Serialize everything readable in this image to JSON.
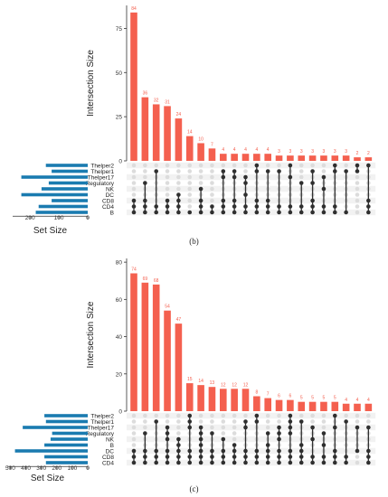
{
  "panels": [
    {
      "caption": "(b)",
      "chart_data": {
        "type": "bar",
        "title": "",
        "ylabel": "Intersection Size",
        "ylim": [
          0,
          88
        ],
        "yticks": [
          0,
          25,
          50,
          75
        ],
        "bar_color": "#f4604f",
        "values": [
          84,
          36,
          32,
          31,
          24,
          14,
          10,
          7,
          4,
          4,
          4,
          4,
          4,
          3,
          3,
          3,
          3,
          3,
          3,
          3,
          2,
          2
        ],
        "sets": [
          "Thelper2",
          "Thelper1",
          "Thelper17",
          "Regulatory",
          "NK",
          "DC",
          "CD8",
          "CD4",
          "B"
        ],
        "set_sizes": [
          145,
          125,
          230,
          135,
          160,
          230,
          125,
          170,
          180
        ],
        "set_size_xlabel": "Set Size",
        "set_size_ticks": [
          200,
          100,
          0
        ],
        "set_size_max": 260,
        "set_color": "#1a7bb0",
        "memberships": [
          [
            6,
            7,
            8
          ],
          [
            3,
            6,
            7,
            8
          ],
          [
            1,
            7,
            8
          ],
          [
            6,
            7,
            8
          ],
          [
            5,
            6,
            7,
            8
          ],
          [
            8
          ],
          [
            4,
            6,
            7,
            8
          ],
          [
            7,
            8
          ],
          [
            1,
            2,
            6,
            7,
            8
          ],
          [
            1,
            2,
            6,
            7,
            8
          ],
          [
            2,
            3,
            5,
            7,
            8
          ],
          [
            0,
            1,
            6,
            7,
            8
          ],
          [
            1,
            6,
            7,
            8
          ],
          [
            1,
            7,
            8
          ],
          [
            0,
            2,
            7,
            8
          ],
          [
            3,
            7,
            8
          ],
          [
            1,
            3,
            6,
            7,
            8
          ],
          [
            2,
            4,
            7,
            8
          ],
          [
            0,
            1,
            7,
            8
          ],
          [
            1,
            8
          ],
          [
            0,
            1
          ],
          [
            0,
            6,
            7,
            8
          ]
        ]
      }
    },
    {
      "caption": "(c)",
      "chart_data": {
        "type": "bar",
        "title": "",
        "ylabel": "Intersection Size",
        "ylim": [
          0,
          82
        ],
        "yticks": [
          0,
          20,
          40,
          60,
          80
        ],
        "bar_color": "#f4604f",
        "values": [
          74,
          69,
          68,
          54,
          47,
          15,
          14,
          13,
          12,
          12,
          12,
          8,
          7,
          6,
          6,
          5,
          5,
          5,
          5,
          4,
          4,
          4
        ],
        "sets": [
          "Thelper2",
          "Thelper1",
          "Thelper17",
          "Regulatory",
          "NK",
          "B",
          "DC",
          "CD8",
          "CD4"
        ],
        "set_sizes": [
          280,
          270,
          420,
          230,
          240,
          280,
          470,
          280,
          270
        ],
        "set_size_xlabel": "Set Size",
        "set_size_ticks": [
          500,
          400,
          300,
          200,
          100,
          0
        ],
        "set_size_max": 520,
        "set_color": "#1a7bb0",
        "memberships": [
          [
            6,
            7,
            8
          ],
          [
            3,
            6,
            7,
            8
          ],
          [
            1,
            6,
            7,
            8
          ],
          [
            2,
            3,
            4,
            6,
            7,
            8
          ],
          [
            4,
            5,
            6,
            7,
            8
          ],
          [
            0,
            1,
            2,
            6,
            7,
            8
          ],
          [
            2,
            3,
            4,
            5,
            6,
            7,
            8
          ],
          [
            3,
            6,
            7,
            8
          ],
          [
            4,
            6,
            7,
            8
          ],
          [
            5,
            6,
            7,
            8
          ],
          [
            1,
            2,
            6,
            7,
            8
          ],
          [
            0,
            1,
            6,
            7,
            8
          ],
          [
            3,
            5,
            6,
            7,
            8
          ],
          [
            2,
            3,
            4,
            6,
            7,
            8
          ],
          [
            0,
            1,
            2,
            3,
            6,
            7,
            8
          ],
          [
            1,
            5,
            6,
            7,
            8
          ],
          [
            2,
            4,
            7,
            8
          ],
          [
            3,
            5,
            7,
            8
          ],
          [
            0,
            2,
            6,
            7,
            8
          ],
          [
            1,
            7,
            8
          ],
          [
            2,
            6
          ],
          [
            2,
            6,
            7,
            8
          ]
        ]
      }
    }
  ]
}
